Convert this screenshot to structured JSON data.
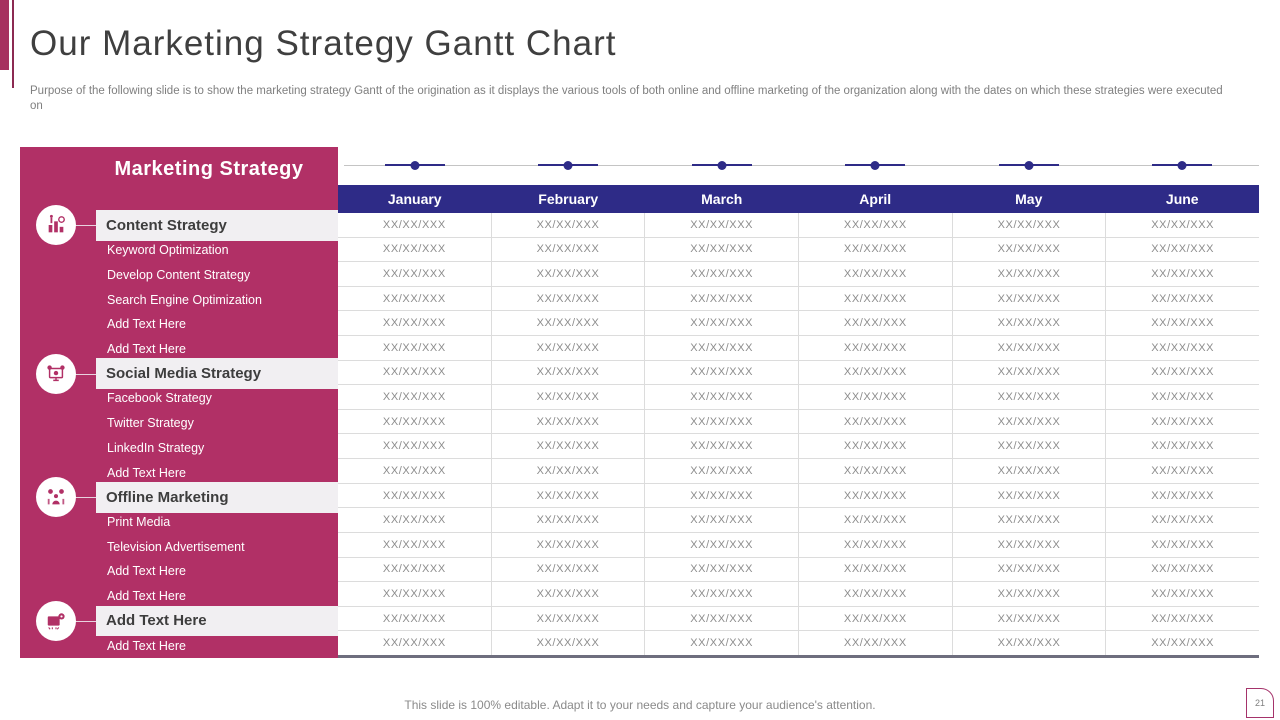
{
  "slide": {
    "title": "Our Marketing Strategy Gantt Chart",
    "subtitle": "Purpose of the following slide is to show the marketing strategy Gantt  of the origination as it displays the various tools of both online and offline marketing of the organization along with the dates on which these strategies were executed on",
    "footer": "This slide is 100% editable. Adapt it to your needs and capture your audience's attention.",
    "page_number": "21"
  },
  "colors": {
    "accent_crimson": "#b13066",
    "accent_dark_maroon": "#8c2a52",
    "header_navy": "#2e2b87",
    "category_row_bg": "#f1eff2",
    "cell_text_gray": "#8c8c8c"
  },
  "sidebar": {
    "title": "Marketing Strategy",
    "rows": [
      {
        "label": "Content Strategy",
        "type": "category",
        "icon": "content-strategy-icon"
      },
      {
        "label": "Keyword Optimization",
        "type": "item"
      },
      {
        "label": "Develop Content Strategy",
        "type": "item"
      },
      {
        "label": "Search Engine Optimization",
        "type": "item"
      },
      {
        "label": "Add Text Here",
        "type": "item"
      },
      {
        "label": "Add Text Here",
        "type": "item"
      },
      {
        "label": "Social Media Strategy",
        "type": "category",
        "icon": "social-media-strategy-icon"
      },
      {
        "label": "Facebook Strategy",
        "type": "item"
      },
      {
        "label": "Twitter Strategy",
        "type": "item"
      },
      {
        "label": "LinkedIn Strategy",
        "type": "item"
      },
      {
        "label": "Add Text Here",
        "type": "item"
      },
      {
        "label": "Offline Marketing",
        "type": "category",
        "icon": "offline-marketing-icon"
      },
      {
        "label": "Print Media",
        "type": "item"
      },
      {
        "label": "Television Advertisement",
        "type": "item"
      },
      {
        "label": "Add Text Here",
        "type": "item"
      },
      {
        "label": "Add Text Here",
        "type": "item"
      },
      {
        "label": "Add  Text Here",
        "type": "category",
        "icon": "projector-icon"
      },
      {
        "label": "Add Text Here",
        "type": "item"
      }
    ]
  },
  "table": {
    "months": [
      "January",
      "February",
      "March",
      "April",
      "May",
      "June"
    ],
    "cell_placeholder": "XX/XX/XXX"
  },
  "chart_data": {
    "type": "table",
    "title": "Our Marketing Strategy Gantt Chart",
    "column_headers": [
      "January",
      "February",
      "March",
      "April",
      "May",
      "June"
    ],
    "row_labels": [
      "Content Strategy",
      "Keyword Optimization",
      "Develop Content Strategy",
      "Search Engine Optimization",
      "Add Text Here",
      "Add Text Here",
      "Social Media Strategy",
      "Facebook Strategy",
      "Twitter Strategy",
      "LinkedIn Strategy",
      "Add Text Here",
      "Offline Marketing",
      "Print Media",
      "Television Advertisement",
      "Add Text Here",
      "Add Text Here",
      "Add  Text Here",
      "Add Text Here"
    ],
    "all_cell_values": "XX/XX/XXX"
  }
}
